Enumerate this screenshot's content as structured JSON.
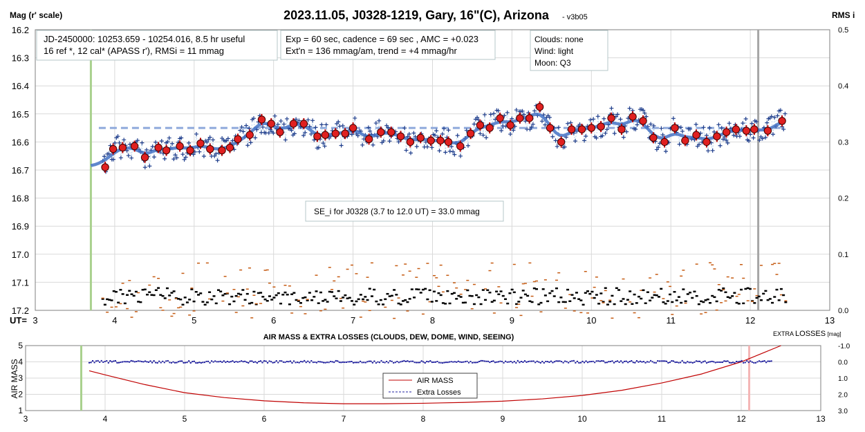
{
  "chart_data": [
    {
      "type": "scatter",
      "title": "2023.11.05, J0328-1219, Gary, 16\"(C), Arizona",
      "subtitle": "- v3b05",
      "ylabel_left": "Mag (r' scale)",
      "ylabel_right": "RMS i",
      "x_axis_prefix": "UT=",
      "xlim": [
        3,
        13
      ],
      "ylim_left": [
        16.2,
        17.2
      ],
      "ylim_right": [
        0.0,
        0.5
      ],
      "y_reversed": true,
      "x_ticks": [
        "3",
        "4",
        "5",
        "6",
        "7",
        "8",
        "9",
        "10",
        "11",
        "12",
        "13"
      ],
      "y_ticks_left": [
        "16.2",
        "16.3",
        "16.4",
        "16.5",
        "16.6",
        "16.7",
        "16.8",
        "16.9",
        "17.0",
        "17.1",
        "17.2"
      ],
      "y_ticks_right": [
        "0.5",
        "0.4",
        "0.3",
        "0.2",
        "0.1",
        "0.0"
      ],
      "grid": true,
      "vertical_markers": [
        {
          "x": 3.7,
          "color": "#a9d18e"
        },
        {
          "x": 12.1,
          "color": "#a6a6a6"
        }
      ],
      "annotations": {
        "info": [
          "JD-2450000: 10253.659 - 10254.016, 8.5 hr useful",
          "16 ref *, 12 cal*  (APASS r'), RMSi = 11 mmag"
        ],
        "exposure": [
          "Exp = 60 sec, cadence = 69 sec , AMC = +0.023",
          "Ext'n = 136 mmag/am, trend = +4 mmag/hr"
        ],
        "weather": [
          "Clouds: none",
          "Wind:   light",
          "Moon:  Q3"
        ],
        "se": "SE_i for J0328 (3.7 to 12.0 UT) = 33.0 mmag"
      },
      "reference_level": 16.55,
      "binned_mags": [
        {
          "x": 3.88,
          "y": 16.69
        },
        {
          "x": 3.98,
          "y": 16.625
        },
        {
          "x": 4.1,
          "y": 16.62
        },
        {
          "x": 4.25,
          "y": 16.615
        },
        {
          "x": 4.38,
          "y": 16.655
        },
        {
          "x": 4.55,
          "y": 16.62
        },
        {
          "x": 4.65,
          "y": 16.63
        },
        {
          "x": 4.82,
          "y": 16.615
        },
        {
          "x": 4.95,
          "y": 16.63
        },
        {
          "x": 5.08,
          "y": 16.605
        },
        {
          "x": 5.2,
          "y": 16.625
        },
        {
          "x": 5.35,
          "y": 16.63
        },
        {
          "x": 5.45,
          "y": 16.62
        },
        {
          "x": 5.55,
          "y": 16.59
        },
        {
          "x": 5.7,
          "y": 16.575
        },
        {
          "x": 5.85,
          "y": 16.52
        },
        {
          "x": 5.97,
          "y": 16.535
        },
        {
          "x": 6.08,
          "y": 16.565
        },
        {
          "x": 6.25,
          "y": 16.535
        },
        {
          "x": 6.38,
          "y": 16.535
        },
        {
          "x": 6.55,
          "y": 16.58
        },
        {
          "x": 6.65,
          "y": 16.575
        },
        {
          "x": 6.78,
          "y": 16.57
        },
        {
          "x": 6.9,
          "y": 16.57
        },
        {
          "x": 7.0,
          "y": 16.55
        },
        {
          "x": 7.2,
          "y": 16.59
        },
        {
          "x": 7.35,
          "y": 16.565
        },
        {
          "x": 7.48,
          "y": 16.565
        },
        {
          "x": 7.6,
          "y": 16.58
        },
        {
          "x": 7.72,
          "y": 16.6
        },
        {
          "x": 7.85,
          "y": 16.585
        },
        {
          "x": 7.98,
          "y": 16.595
        },
        {
          "x": 8.1,
          "y": 16.595
        },
        {
          "x": 8.2,
          "y": 16.6
        },
        {
          "x": 8.35,
          "y": 16.615
        },
        {
          "x": 8.48,
          "y": 16.57
        },
        {
          "x": 8.6,
          "y": 16.54
        },
        {
          "x": 8.72,
          "y": 16.55
        },
        {
          "x": 8.85,
          "y": 16.515
        },
        {
          "x": 8.98,
          "y": 16.54
        },
        {
          "x": 9.1,
          "y": 16.515
        },
        {
          "x": 9.22,
          "y": 16.515
        },
        {
          "x": 9.35,
          "y": 16.475
        },
        {
          "x": 9.48,
          "y": 16.55
        },
        {
          "x": 9.62,
          "y": 16.6
        },
        {
          "x": 9.75,
          "y": 16.555
        },
        {
          "x": 9.88,
          "y": 16.555
        },
        {
          "x": 10.0,
          "y": 16.55
        },
        {
          "x": 10.12,
          "y": 16.545
        },
        {
          "x": 10.25,
          "y": 16.515
        },
        {
          "x": 10.38,
          "y": 16.555
        },
        {
          "x": 10.52,
          "y": 16.51
        },
        {
          "x": 10.65,
          "y": 16.525
        },
        {
          "x": 10.78,
          "y": 16.585
        },
        {
          "x": 10.92,
          "y": 16.6
        },
        {
          "x": 11.05,
          "y": 16.55
        },
        {
          "x": 11.18,
          "y": 16.595
        },
        {
          "x": 11.32,
          "y": 16.575
        },
        {
          "x": 11.45,
          "y": 16.6
        },
        {
          "x": 11.58,
          "y": 16.58
        },
        {
          "x": 11.7,
          "y": 16.565
        },
        {
          "x": 11.82,
          "y": 16.555
        },
        {
          "x": 11.95,
          "y": 16.56
        },
        {
          "x": 12.05,
          "y": 16.555
        },
        {
          "x": 12.22,
          "y": 16.56
        },
        {
          "x": 12.4,
          "y": 16.525
        }
      ]
    },
    {
      "type": "line",
      "title": "AIR MASS & EXTRA LOSSES (CLOUDS, DEW, DOME, WIND, SEEING)",
      "ylabel_left": "AIR MASS",
      "ylabel_right_prefix": "EXTRA",
      "ylabel_right_main": "LOSSES",
      "ylabel_right_unit": "[mag]",
      "xlim": [
        3,
        13
      ],
      "ylim_left": [
        1,
        5
      ],
      "ylim_right": [
        -1.0,
        3.0
      ],
      "x_ticks": [
        "3",
        "4",
        "5",
        "6",
        "7",
        "8",
        "9",
        "10",
        "11",
        "12",
        "13"
      ],
      "y_ticks_left": [
        "5",
        "4",
        "3",
        "2",
        "1"
      ],
      "y_ticks_right": [
        "-1.0",
        "0.0",
        "1.0",
        "2.0",
        "3.0"
      ],
      "legend": [
        "AIR MASS",
        "Extra Losses"
      ],
      "legend_position": "bottom-center",
      "vertical_markers": [
        {
          "x": 3.7,
          "color": "#a9d18e"
        },
        {
          "x": 12.1,
          "color": "#f4b6b6"
        }
      ],
      "series": [
        {
          "name": "AIR MASS",
          "color": "#c00000",
          "x": [
            3.8,
            4.0,
            4.5,
            5.0,
            5.5,
            6.0,
            6.5,
            7.0,
            7.5,
            8.0,
            8.5,
            9.0,
            9.5,
            10.0,
            10.5,
            11.0,
            11.5,
            12.0,
            12.3,
            12.5
          ],
          "y": [
            3.45,
            3.2,
            2.6,
            2.1,
            1.8,
            1.6,
            1.48,
            1.42,
            1.42,
            1.45,
            1.5,
            1.58,
            1.72,
            1.93,
            2.25,
            2.7,
            3.25,
            4.0,
            4.6,
            5.0
          ]
        },
        {
          "name": "Extra Losses",
          "color": "#1f1fa0",
          "x_range": [
            3.8,
            12.4
          ],
          "level": 0.0,
          "scatter": 0.07
        }
      ]
    }
  ]
}
